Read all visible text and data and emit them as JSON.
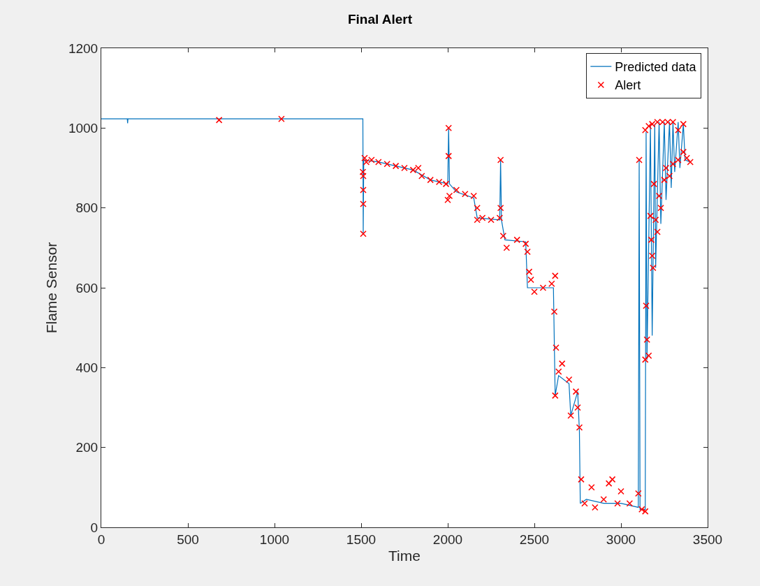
{
  "chart_data": {
    "type": "line",
    "title": "Final Alert",
    "xlabel": "Time",
    "ylabel": "Flame Sensor",
    "xlim": [
      0,
      3500
    ],
    "xticks": [
      0,
      500,
      1000,
      1500,
      2000,
      2500,
      3000,
      3500
    ],
    "ylim": [
      0,
      1200
    ],
    "yticks": [
      0,
      200,
      400,
      600,
      800,
      1000,
      1200
    ],
    "grid": false,
    "legend": "top right",
    "series": [
      {
        "name": "Predicted data",
        "color": "#0072bd",
        "marker": "none",
        "line_style": "solid",
        "x": [
          0,
          150,
          152,
          154,
          1510,
          1512,
          1515,
          1600,
          1700,
          1800,
          1900,
          2000,
          2005,
          2010,
          2050,
          2150,
          2170,
          2300,
          2305,
          2310,
          2330,
          2450,
          2460,
          2610,
          2620,
          2640,
          2700,
          2710,
          2750,
          2760,
          2765,
          2800,
          2900,
          3000,
          3100,
          3105,
          3110,
          3140,
          3145,
          3150,
          3170,
          3180,
          3195,
          3200,
          3220,
          3230,
          3250,
          3260,
          3280,
          3290,
          3300,
          3310,
          3330,
          3340,
          3360,
          3370,
          3400
        ],
        "values": [
          1023,
          1023,
          1012,
          1023,
          1023,
          735,
          920,
          915,
          905,
          895,
          870,
          860,
          1000,
          860,
          840,
          825,
          775,
          770,
          920,
          770,
          720,
          715,
          600,
          600,
          330,
          380,
          360,
          280,
          340,
          240,
          60,
          70,
          60,
          60,
          50,
          920,
          45,
          45,
          990,
          420,
          1005,
          480,
          1010,
          650,
          1015,
          760,
          1015,
          820,
          1015,
          850,
          1015,
          890,
          1015,
          900,
          1010,
          920,
          915
        ]
      },
      {
        "name": "Alert",
        "type": "scatter",
        "color": "#ff0000",
        "marker": "cross",
        "x": [
          680,
          1040,
          1510,
          1512,
          1512,
          1512,
          1512,
          1520,
          1530,
          1560,
          1600,
          1650,
          1700,
          1750,
          1800,
          1830,
          1850,
          1900,
          1950,
          1990,
          2000,
          2005,
          2005,
          2010,
          2050,
          2100,
          2150,
          2170,
          2170,
          2200,
          2250,
          2300,
          2305,
          2305,
          2320,
          2340,
          2400,
          2450,
          2460,
          2470,
          2480,
          2500,
          2550,
          2600,
          2620,
          2615,
          2625,
          2620,
          2640,
          2660,
          2700,
          2710,
          2740,
          2750,
          2760,
          2770,
          2790,
          2830,
          2850,
          2900,
          2930,
          2950,
          2980,
          3000,
          3050,
          3100,
          3120,
          3140,
          3105,
          3140,
          3145,
          3150,
          3160,
          3170,
          3175,
          3180,
          3185,
          3190,
          3200,
          3210,
          3220,
          3230,
          3250,
          3260,
          3280,
          3300,
          3330,
          3360,
          3380,
          3400,
          3140,
          3160,
          3180,
          3210,
          3240,
          3270,
          3300,
          3330,
          3360
        ],
        "values": [
          1020,
          1023,
          890,
          880,
          845,
          810,
          735,
          925,
          915,
          920,
          915,
          910,
          905,
          900,
          895,
          900,
          880,
          870,
          865,
          860,
          820,
          1000,
          930,
          830,
          845,
          835,
          830,
          800,
          770,
          775,
          770,
          775,
          920,
          800,
          730,
          700,
          720,
          710,
          690,
          640,
          620,
          590,
          600,
          610,
          630,
          540,
          450,
          330,
          390,
          410,
          370,
          280,
          340,
          300,
          250,
          120,
          60,
          100,
          50,
          70,
          110,
          120,
          60,
          90,
          60,
          85,
          45,
          40,
          920,
          420,
          555,
          470,
          430,
          780,
          720,
          680,
          650,
          860,
          770,
          740,
          830,
          800,
          870,
          900,
          880,
          910,
          920,
          940,
          925,
          915,
          995,
          1005,
          1010,
          1015,
          1015,
          1015,
          1015,
          995,
          1010
        ]
      }
    ]
  }
}
